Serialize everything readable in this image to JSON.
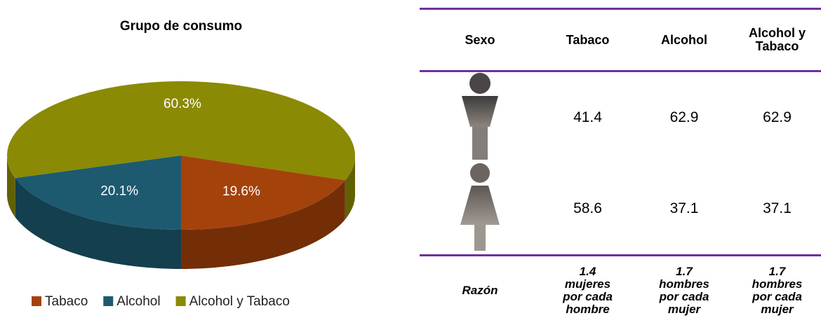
{
  "chart_data": {
    "type": "pie",
    "title": "Grupo de consumo",
    "categories": [
      "Tabaco",
      "Alcohol",
      "Alcohol y Tabaco"
    ],
    "values": [
      19.6,
      20.1,
      60.3
    ],
    "value_labels": [
      "19.6%",
      "20.1%",
      "60.3%"
    ],
    "colors": [
      "#a4420c",
      "#1d5a70",
      "#8a8a05"
    ]
  },
  "table": {
    "header": [
      "Sexo",
      "Tabaco",
      "Alcohol",
      "Alcohol y Tabaco"
    ],
    "rows": [
      {
        "values": [
          41.4,
          62.9,
          62.9
        ]
      },
      {
        "values": [
          58.6,
          37.1,
          37.1
        ]
      }
    ],
    "ratio": {
      "label": "Razón",
      "values": [
        "1.4 mujeres por cada hombre",
        "1.7 hombres por cada mujer",
        "1.7 hombres por cada mujer"
      ]
    }
  }
}
